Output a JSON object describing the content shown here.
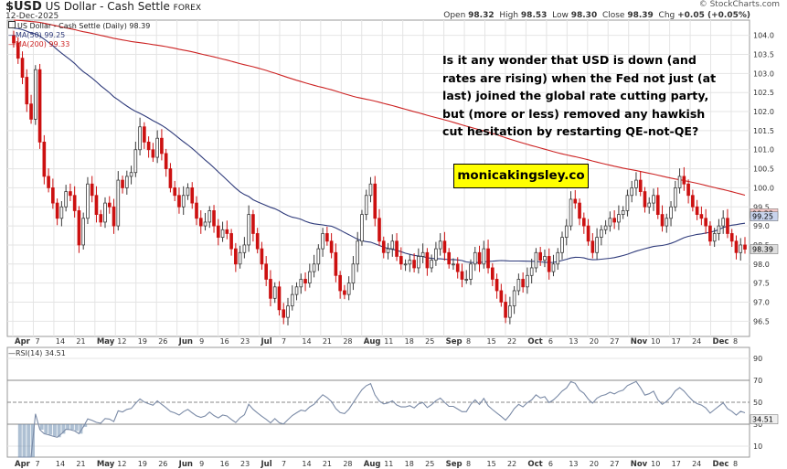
{
  "header": {
    "symbol": "$USD",
    "name": "US Dollar - Cash Settle",
    "exchange": "FOREX",
    "date": "12-Dec-2025",
    "brand": "© StockCharts.com",
    "ohlc": {
      "open_label": "Open",
      "open": "98.32",
      "high_label": "High",
      "high": "98.53",
      "low_label": "Low",
      "low": "98.30",
      "close_label": "Close",
      "close": "98.39",
      "chg_label": "Chg",
      "chg": "+0.05 (+0.05%)"
    }
  },
  "legend": {
    "series_label": "US Dollar - Cash Settle (Daily) 98.39",
    "ma50_label": "MA(50) 99.25",
    "ma200_label": "MA(200) 99.33",
    "rsi_label": "RSI(14) 34.51"
  },
  "annotation": "Is it any wonder that USD is down (and rates are rising) when the Fed not just (at last) joined the global rate cutting party, but (more or less) removed any hawkish cut hesitation by restarting QE-not-QE?",
  "site_label": "monicakingsley.co",
  "colors": {
    "up": "#3a3a3a",
    "down": "#cc1111",
    "ma50": "#2e3a7a",
    "ma200": "#cc2222",
    "rsi": "#7a8aa6",
    "grid": "#e4e4e4",
    "badge_ma50": "#c8d3ec",
    "badge_ma200": "#f3c9c9",
    "badge_last": "#dddddd",
    "highlight": "#ffff00"
  },
  "chart_data": [
    {
      "type": "candlestick",
      "title": "US Dollar - Cash Settle (Daily)",
      "ylim": [
        96.1,
        104.4
      ],
      "y_ticks": [
        "96.5",
        "97.0",
        "97.5",
        "98.0",
        "98.5",
        "99.0",
        "99.5",
        "100.0",
        "100.5",
        "101.0",
        "101.5",
        "102.0",
        "102.5",
        "103.0",
        "103.5",
        "104.0"
      ],
      "x_tick_labels": [
        "Apr",
        "7",
        "14",
        "21",
        "May",
        "12",
        "19",
        "26",
        "Jun",
        "9",
        "16",
        "23",
        "Jul",
        "7",
        "14",
        "21",
        "28",
        "Aug",
        "11",
        "18",
        "25",
        "Sep",
        "8",
        "15",
        "22",
        "Oct",
        "6",
        "13",
        "20",
        "27",
        "Nov",
        "10",
        "17",
        "24",
        "Dec",
        "8"
      ],
      "x_month_labels": [
        "Apr",
        "May",
        "Jun",
        "Jul",
        "Aug",
        "Sep",
        "Oct",
        "Nov",
        "Dec"
      ],
      "closes": [
        103.8,
        103.4,
        102.9,
        102.2,
        101.8,
        103.1,
        101.2,
        100.3,
        100.0,
        99.6,
        99.2,
        99.5,
        99.9,
        99.8,
        99.4,
        98.5,
        99.2,
        100.1,
        99.8,
        99.3,
        99.1,
        99.6,
        99.5,
        99.0,
        100.2,
        100.0,
        100.3,
        100.4,
        101.0,
        101.6,
        101.2,
        101.0,
        100.8,
        101.3,
        100.9,
        100.5,
        100.0,
        99.8,
        99.5,
        99.8,
        100.0,
        99.6,
        99.2,
        99.0,
        99.1,
        99.4,
        99.0,
        98.7,
        98.9,
        98.8,
        98.4,
        98.0,
        98.3,
        98.5,
        99.3,
        98.8,
        98.4,
        98.0,
        97.6,
        97.1,
        97.4,
        96.8,
        96.6,
        96.9,
        97.2,
        97.4,
        97.6,
        97.5,
        97.8,
        98.0,
        98.4,
        98.8,
        98.6,
        98.3,
        97.7,
        97.3,
        97.2,
        97.5,
        98.0,
        98.6,
        99.3,
        99.8,
        100.1,
        99.2,
        98.6,
        98.3,
        98.4,
        98.6,
        98.2,
        98.0,
        98.0,
        98.1,
        97.9,
        98.2,
        98.3,
        97.9,
        98.1,
        98.4,
        98.6,
        98.3,
        98.0,
        98.0,
        97.8,
        97.6,
        97.6,
        98.0,
        98.3,
        98.0,
        98.4,
        97.9,
        97.6,
        97.3,
        97.0,
        96.6,
        96.9,
        97.3,
        97.6,
        97.4,
        97.7,
        97.9,
        98.3,
        98.1,
        98.2,
        97.8,
        98.0,
        98.3,
        98.7,
        99.0,
        99.7,
        99.6,
        99.2,
        99.0,
        98.6,
        98.3,
        98.7,
        98.9,
        99.0,
        99.2,
        99.1,
        99.3,
        99.4,
        99.8,
        100.0,
        100.2,
        99.9,
        99.5,
        99.6,
        99.8,
        99.3,
        99.0,
        99.2,
        99.5,
        100.0,
        100.3,
        100.1,
        99.8,
        99.5,
        99.3,
        99.2,
        99.0,
        98.6,
        98.8,
        99.0,
        99.2,
        98.8,
        98.6,
        98.3,
        98.5,
        98.39
      ],
      "ma50_value": 99.25,
      "ma200_value": 99.33,
      "last_value": 98.39
    },
    {
      "type": "line",
      "title": "RSI(14)",
      "ylim": [
        0,
        100
      ],
      "y_ticks": [
        "10",
        "30",
        "50",
        "70",
        "90"
      ],
      "x_tick_labels": [
        "Apr",
        "7",
        "14",
        "21",
        "May",
        "12",
        "19",
        "26",
        "Jun",
        "9",
        "16",
        "23",
        "Jul",
        "7",
        "14",
        "21",
        "28",
        "Aug",
        "11",
        "18",
        "25",
        "Sep",
        "8",
        "15",
        "22",
        "Oct",
        "6",
        "13",
        "20",
        "27",
        "Nov",
        "10",
        "17",
        "24",
        "Dec",
        "8"
      ],
      "last_value": 34.51
    }
  ]
}
